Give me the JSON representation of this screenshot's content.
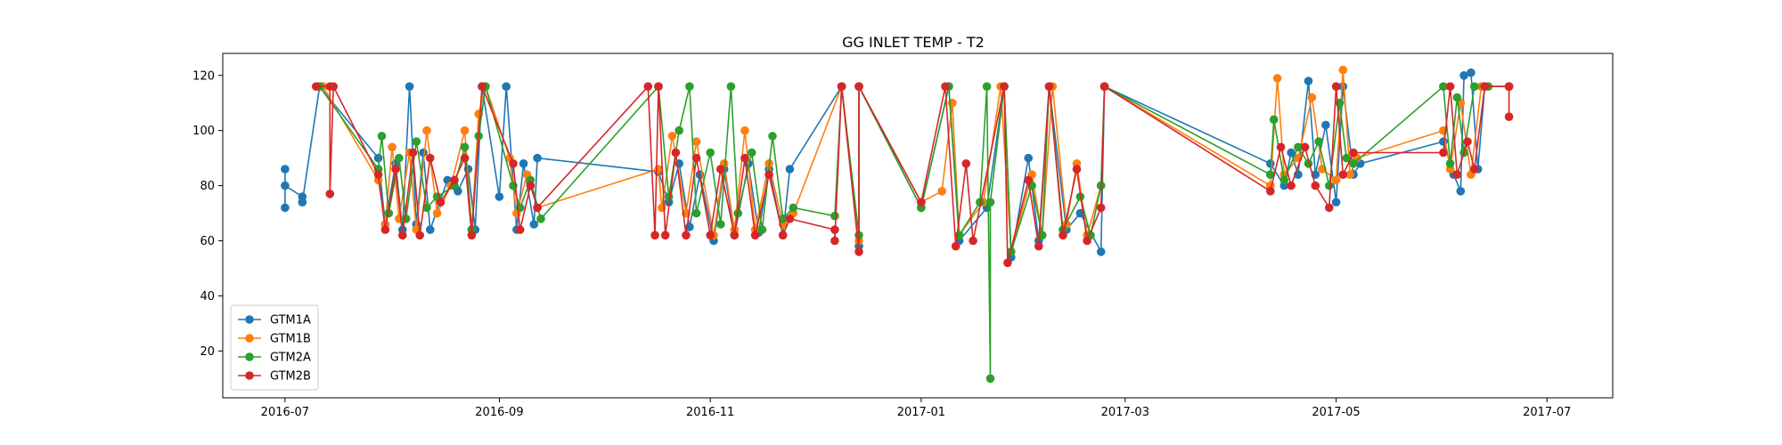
{
  "chart_data": {
    "type": "line",
    "title": "GG INLET TEMP - T2",
    "xlabel": "",
    "ylabel": "",
    "x_type": "date",
    "xlim": [
      "2016-06-13",
      "2017-07-20"
    ],
    "ylim": [
      3,
      128
    ],
    "x_ticks": [
      {
        "label": "2016-07",
        "date": "2016-07-01"
      },
      {
        "label": "2016-09",
        "date": "2016-09-01"
      },
      {
        "label": "2016-11",
        "date": "2016-11-01"
      },
      {
        "label": "2017-01",
        "date": "2017-01-01"
      },
      {
        "label": "2017-03",
        "date": "2017-03-01"
      },
      {
        "label": "2017-05",
        "date": "2017-05-01"
      },
      {
        "label": "2017-07",
        "date": "2017-07-01"
      }
    ],
    "y_ticks": [
      20,
      40,
      60,
      80,
      100,
      120
    ],
    "grid": false,
    "legend_position": "lower-left",
    "series": [
      {
        "name": "GTM1A",
        "color": "#1f77b4",
        "points": [
          [
            "2016-07-01",
            86
          ],
          [
            "2016-07-01",
            72
          ],
          [
            "2016-07-01",
            80
          ],
          [
            "2016-07-06",
            76
          ],
          [
            "2016-07-06",
            74
          ],
          [
            "2016-07-11",
            116
          ],
          [
            "2016-07-28",
            90
          ],
          [
            "2016-07-30",
            66
          ],
          [
            "2016-08-02",
            88
          ],
          [
            "2016-08-04",
            64
          ],
          [
            "2016-08-06",
            116
          ],
          [
            "2016-08-08",
            66
          ],
          [
            "2016-08-10",
            92
          ],
          [
            "2016-08-12",
            64
          ],
          [
            "2016-08-17",
            82
          ],
          [
            "2016-08-20",
            78
          ],
          [
            "2016-08-23",
            86
          ],
          [
            "2016-08-25",
            64
          ],
          [
            "2016-08-27",
            116
          ],
          [
            "2016-09-01",
            76
          ],
          [
            "2016-09-03",
            116
          ],
          [
            "2016-09-06",
            64
          ],
          [
            "2016-09-08",
            88
          ],
          [
            "2016-09-11",
            66
          ],
          [
            "2016-09-12",
            90
          ],
          [
            "2016-10-17",
            85
          ],
          [
            "2016-10-20",
            74
          ],
          [
            "2016-10-23",
            88
          ],
          [
            "2016-10-26",
            65
          ],
          [
            "2016-10-29",
            84
          ],
          [
            "2016-11-02",
            60
          ],
          [
            "2016-11-05",
            86
          ],
          [
            "2016-11-08",
            62
          ],
          [
            "2016-11-12",
            88
          ],
          [
            "2016-11-15",
            63
          ],
          [
            "2016-11-18",
            86
          ],
          [
            "2016-11-22",
            62
          ],
          [
            "2016-11-24",
            86
          ],
          [
            "2016-12-09",
            116
          ],
          [
            "2016-12-14",
            58
          ],
          [
            "2016-12-14",
            116
          ],
          [
            "2017-01-01",
            72
          ],
          [
            "2017-01-09",
            116
          ],
          [
            "2017-01-12",
            60
          ],
          [
            "2017-01-20",
            72
          ],
          [
            "2017-01-25",
            116
          ],
          [
            "2017-01-27",
            54
          ],
          [
            "2017-02-01",
            90
          ],
          [
            "2017-02-04",
            60
          ],
          [
            "2017-02-07",
            116
          ],
          [
            "2017-02-12",
            64
          ],
          [
            "2017-02-16",
            70
          ],
          [
            "2017-02-22",
            56
          ],
          [
            "2017-02-23",
            116
          ],
          [
            "2017-04-12",
            88
          ],
          [
            "2017-04-16",
            80
          ],
          [
            "2017-04-18",
            92
          ],
          [
            "2017-04-20",
            84
          ],
          [
            "2017-04-23",
            118
          ],
          [
            "2017-04-25",
            84
          ],
          [
            "2017-04-28",
            102
          ],
          [
            "2017-05-01",
            74
          ],
          [
            "2017-05-03",
            116
          ],
          [
            "2017-05-06",
            84
          ],
          [
            "2017-05-08",
            88
          ],
          [
            "2017-06-01",
            96
          ],
          [
            "2017-06-04",
            84
          ],
          [
            "2017-06-06",
            78
          ],
          [
            "2017-06-07",
            120
          ],
          [
            "2017-06-09",
            121
          ],
          [
            "2017-06-11",
            86
          ],
          [
            "2017-06-13",
            116
          ],
          [
            "2017-06-20",
            116
          ]
        ]
      },
      {
        "name": "GTM1B",
        "color": "#ff7f0e",
        "points": [
          [
            "2016-07-11",
            116
          ],
          [
            "2016-07-12",
            116
          ],
          [
            "2016-07-28",
            82
          ],
          [
            "2016-07-30",
            66
          ],
          [
            "2016-08-01",
            94
          ],
          [
            "2016-08-03",
            68
          ],
          [
            "2016-08-06",
            92
          ],
          [
            "2016-08-08",
            64
          ],
          [
            "2016-08-11",
            100
          ],
          [
            "2016-08-14",
            70
          ],
          [
            "2016-08-18",
            80
          ],
          [
            "2016-08-22",
            100
          ],
          [
            "2016-08-24",
            64
          ],
          [
            "2016-08-26",
            106
          ],
          [
            "2016-08-28",
            116
          ],
          [
            "2016-09-04",
            90
          ],
          [
            "2016-09-06",
            70
          ],
          [
            "2016-09-09",
            84
          ],
          [
            "2016-09-12",
            72
          ],
          [
            "2016-10-17",
            86
          ],
          [
            "2016-10-18",
            72
          ],
          [
            "2016-10-21",
            98
          ],
          [
            "2016-10-25",
            70
          ],
          [
            "2016-10-28",
            96
          ],
          [
            "2016-11-02",
            62
          ],
          [
            "2016-11-05",
            88
          ],
          [
            "2016-11-08",
            64
          ],
          [
            "2016-11-11",
            100
          ],
          [
            "2016-11-14",
            64
          ],
          [
            "2016-11-18",
            88
          ],
          [
            "2016-11-22",
            66
          ],
          [
            "2016-11-25",
            70
          ],
          [
            "2016-12-09",
            116
          ],
          [
            "2016-12-14",
            60
          ],
          [
            "2016-12-14",
            116
          ],
          [
            "2017-01-01",
            74
          ],
          [
            "2017-01-07",
            78
          ],
          [
            "2017-01-10",
            110
          ],
          [
            "2017-01-12",
            62
          ],
          [
            "2017-01-19",
            74
          ],
          [
            "2017-01-24",
            116
          ],
          [
            "2017-01-27",
            56
          ],
          [
            "2017-02-02",
            84
          ],
          [
            "2017-02-05",
            62
          ],
          [
            "2017-02-08",
            116
          ],
          [
            "2017-02-12",
            66
          ],
          [
            "2017-02-15",
            88
          ],
          [
            "2017-02-18",
            62
          ],
          [
            "2017-02-22",
            80
          ],
          [
            "2017-02-23",
            116
          ],
          [
            "2017-04-12",
            80
          ],
          [
            "2017-04-14",
            119
          ],
          [
            "2017-04-16",
            84
          ],
          [
            "2017-04-20",
            90
          ],
          [
            "2017-04-24",
            112
          ],
          [
            "2017-04-27",
            86
          ],
          [
            "2017-05-01",
            82
          ],
          [
            "2017-05-03",
            122
          ],
          [
            "2017-05-05",
            84
          ],
          [
            "2017-05-07",
            90
          ],
          [
            "2017-06-01",
            100
          ],
          [
            "2017-06-03",
            86
          ],
          [
            "2017-06-06",
            110
          ],
          [
            "2017-06-09",
            84
          ],
          [
            "2017-06-12",
            116
          ],
          [
            "2017-06-20",
            116
          ]
        ]
      },
      {
        "name": "GTM2A",
        "color": "#2ca02c",
        "points": [
          [
            "2016-07-11",
            116
          ],
          [
            "2016-07-28",
            86
          ],
          [
            "2016-07-29",
            98
          ],
          [
            "2016-07-31",
            70
          ],
          [
            "2016-08-03",
            90
          ],
          [
            "2016-08-05",
            68
          ],
          [
            "2016-08-08",
            96
          ],
          [
            "2016-08-11",
            72
          ],
          [
            "2016-08-14",
            76
          ],
          [
            "2016-08-19",
            80
          ],
          [
            "2016-08-22",
            94
          ],
          [
            "2016-08-24",
            64
          ],
          [
            "2016-08-26",
            98
          ],
          [
            "2016-08-28",
            116
          ],
          [
            "2016-09-05",
            80
          ],
          [
            "2016-09-07",
            72
          ],
          [
            "2016-09-10",
            82
          ],
          [
            "2016-09-13",
            68
          ],
          [
            "2016-10-17",
            116
          ],
          [
            "2016-10-20",
            76
          ],
          [
            "2016-10-23",
            100
          ],
          [
            "2016-10-26",
            116
          ],
          [
            "2016-10-28",
            70
          ],
          [
            "2016-11-01",
            92
          ],
          [
            "2016-11-04",
            66
          ],
          [
            "2016-11-07",
            116
          ],
          [
            "2016-11-09",
            70
          ],
          [
            "2016-11-13",
            92
          ],
          [
            "2016-11-16",
            64
          ],
          [
            "2016-11-19",
            98
          ],
          [
            "2016-11-22",
            68
          ],
          [
            "2016-11-25",
            72
          ],
          [
            "2016-12-07",
            69
          ],
          [
            "2016-12-09",
            116
          ],
          [
            "2016-12-14",
            62
          ],
          [
            "2016-12-14",
            116
          ],
          [
            "2017-01-01",
            72
          ],
          [
            "2017-01-09",
            116
          ],
          [
            "2017-01-12",
            62
          ],
          [
            "2017-01-18",
            74
          ],
          [
            "2017-01-20",
            116
          ],
          [
            "2017-01-21",
            10
          ],
          [
            "2017-01-21",
            74
          ],
          [
            "2017-01-25",
            116
          ],
          [
            "2017-01-27",
            56
          ],
          [
            "2017-02-02",
            80
          ],
          [
            "2017-02-05",
            62
          ],
          [
            "2017-02-07",
            116
          ],
          [
            "2017-02-11",
            64
          ],
          [
            "2017-02-16",
            76
          ],
          [
            "2017-02-19",
            62
          ],
          [
            "2017-02-22",
            80
          ],
          [
            "2017-02-23",
            116
          ],
          [
            "2017-04-12",
            84
          ],
          [
            "2017-04-13",
            104
          ],
          [
            "2017-04-16",
            82
          ],
          [
            "2017-04-20",
            94
          ],
          [
            "2017-04-23",
            88
          ],
          [
            "2017-04-26",
            96
          ],
          [
            "2017-04-29",
            80
          ],
          [
            "2017-05-02",
            110
          ],
          [
            "2017-05-04",
            90
          ],
          [
            "2017-05-06",
            88
          ],
          [
            "2017-06-01",
            116
          ],
          [
            "2017-06-03",
            88
          ],
          [
            "2017-06-05",
            112
          ],
          [
            "2017-06-07",
            92
          ],
          [
            "2017-06-10",
            116
          ],
          [
            "2017-06-14",
            116
          ],
          [
            "2017-06-20",
            116
          ]
        ]
      },
      {
        "name": "GTM2B",
        "color": "#d62728",
        "points": [
          [
            "2016-07-10",
            116
          ],
          [
            "2016-07-14",
            116
          ],
          [
            "2016-07-14",
            77
          ],
          [
            "2016-07-15",
            116
          ],
          [
            "2016-07-28",
            84
          ],
          [
            "2016-07-30",
            64
          ],
          [
            "2016-08-02",
            86
          ],
          [
            "2016-08-04",
            62
          ],
          [
            "2016-08-07",
            92
          ],
          [
            "2016-08-09",
            62
          ],
          [
            "2016-08-12",
            90
          ],
          [
            "2016-08-15",
            74
          ],
          [
            "2016-08-19",
            82
          ],
          [
            "2016-08-22",
            90
          ],
          [
            "2016-08-24",
            62
          ],
          [
            "2016-08-27",
            116
          ],
          [
            "2016-09-05",
            88
          ],
          [
            "2016-09-07",
            64
          ],
          [
            "2016-09-10",
            80
          ],
          [
            "2016-09-12",
            72
          ],
          [
            "2016-10-14",
            116
          ],
          [
            "2016-10-16",
            62
          ],
          [
            "2016-10-17",
            116
          ],
          [
            "2016-10-19",
            62
          ],
          [
            "2016-10-22",
            92
          ],
          [
            "2016-10-25",
            62
          ],
          [
            "2016-10-28",
            90
          ],
          [
            "2016-11-01",
            62
          ],
          [
            "2016-11-04",
            86
          ],
          [
            "2016-11-08",
            62
          ],
          [
            "2016-11-11",
            90
          ],
          [
            "2016-11-14",
            62
          ],
          [
            "2016-11-18",
            84
          ],
          [
            "2016-11-22",
            62
          ],
          [
            "2016-11-24",
            68
          ],
          [
            "2016-12-07",
            64
          ],
          [
            "2016-12-07",
            60
          ],
          [
            "2016-12-09",
            116
          ],
          [
            "2016-12-14",
            56
          ],
          [
            "2016-12-14",
            116
          ],
          [
            "2017-01-01",
            74
          ],
          [
            "2017-01-08",
            116
          ],
          [
            "2017-01-11",
            58
          ],
          [
            "2017-01-14",
            88
          ],
          [
            "2017-01-16",
            60
          ],
          [
            "2017-01-25",
            116
          ],
          [
            "2017-01-26",
            52
          ],
          [
            "2017-02-01",
            82
          ],
          [
            "2017-02-04",
            58
          ],
          [
            "2017-02-07",
            116
          ],
          [
            "2017-02-11",
            62
          ],
          [
            "2017-02-15",
            86
          ],
          [
            "2017-02-18",
            60
          ],
          [
            "2017-02-22",
            72
          ],
          [
            "2017-02-23",
            116
          ],
          [
            "2017-04-12",
            78
          ],
          [
            "2017-04-15",
            94
          ],
          [
            "2017-04-18",
            80
          ],
          [
            "2017-04-22",
            94
          ],
          [
            "2017-04-25",
            80
          ],
          [
            "2017-04-29",
            72
          ],
          [
            "2017-05-01",
            116
          ],
          [
            "2017-05-03",
            84
          ],
          [
            "2017-05-06",
            92
          ],
          [
            "2017-06-01",
            92
          ],
          [
            "2017-06-03",
            116
          ],
          [
            "2017-06-05",
            84
          ],
          [
            "2017-06-08",
            96
          ],
          [
            "2017-06-10",
            86
          ],
          [
            "2017-06-13",
            116
          ],
          [
            "2017-06-20",
            116
          ],
          [
            "2017-06-20",
            105
          ]
        ]
      }
    ]
  }
}
